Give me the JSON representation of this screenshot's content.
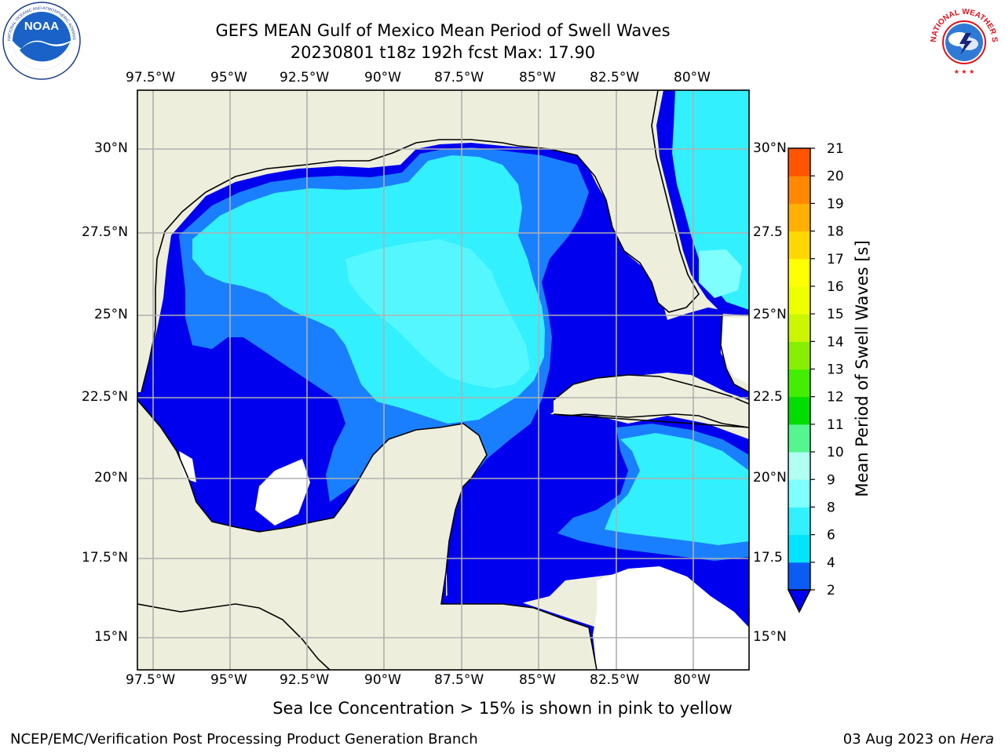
{
  "header": {
    "title_line1": "GEFS MEAN Gulf of Mexico Mean Period of Swell Waves",
    "title_line2": "20230801 t18z 192h fcst   Max: 17.90"
  },
  "logos": {
    "left": {
      "icon": "noaa-logo-icon",
      "text": "NOAA",
      "ring_text": "NATIONAL OCEANIC AND ATMOSPHERIC ADMINISTRATION · U.S. DEPARTMENT OF COMMERCE"
    },
    "right": {
      "icon": "nws-logo-icon",
      "ring_text": "NATIONAL WEATHER SERVICE"
    }
  },
  "map": {
    "lon_labels": [
      "97.5°W",
      "95°W",
      "92.5°W",
      "90°W",
      "87.5°W",
      "85°W",
      "82.5°W",
      "80°W"
    ],
    "lat_labels": [
      "30°N",
      "27.5°N",
      "25°N",
      "22.5°N",
      "20°N",
      "17.5°N",
      "15°N"
    ],
    "lat_labels_right": [
      "30°N",
      "27.5",
      "25°N",
      "22.5",
      "20°N",
      "17.5",
      "15°N"
    ],
    "colors": {
      "land": "#eeeedd",
      "grid": "#b0b0b0",
      "coast": "#000000"
    }
  },
  "colorbar": {
    "label": "Mean Period of Swell Waves [s]",
    "ticks": [
      "2",
      "4",
      "6",
      "8",
      "9",
      "10",
      "11",
      "12",
      "13",
      "14",
      "15",
      "16",
      "17",
      "18",
      "19",
      "20",
      "21"
    ],
    "colors": [
      "#0a5cf5",
      "#00e4ff",
      "#33f0ff",
      "#80ffff",
      "#b0fff0",
      "#55f590",
      "#00dd00",
      "#44ee00",
      "#88ee00",
      "#ccf500",
      "#eeff00",
      "#ffff00",
      "#ffd800",
      "#ffb000",
      "#ff8800",
      "#ff5500",
      "#ff2200",
      "#ff0000"
    ],
    "underflow_color": "#0000ee"
  },
  "subtitle": "Sea Ice Concentration > 15% is shown in pink to yellow",
  "footer": {
    "left": "NCEP/EMC/Verification Post Processing Product Generation Branch",
    "right_prefix": "03 Aug 2023 on ",
    "right_host": "Hera"
  }
}
